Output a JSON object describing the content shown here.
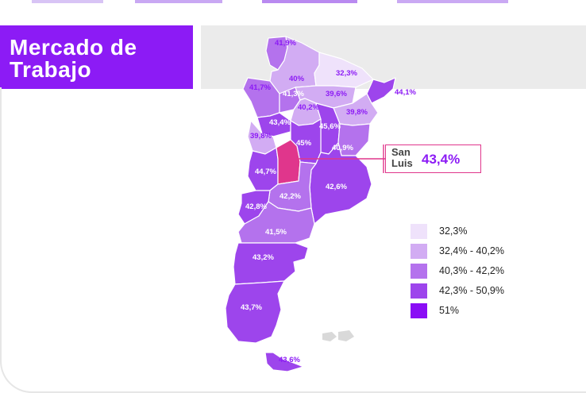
{
  "header": {
    "title_line1": "Mercado de",
    "title_line2": "Trabajo"
  },
  "colors": {
    "brand": "#8c1bf5",
    "highlight": "#e0368c",
    "class_1": "#efe2fb",
    "class_2": "#d2acf3",
    "class_3": "#b472ed",
    "class_4": "#9d45ec",
    "class_5": "#8a0df5"
  },
  "map": {
    "provinces": [
      {
        "label": "41,9%",
        "class": 3
      },
      {
        "label": "40%",
        "class": 2
      },
      {
        "label": "32,3%",
        "class": 1
      },
      {
        "label": "41,7%",
        "class": 3
      },
      {
        "label": "41,3%",
        "class": 3
      },
      {
        "label": "39,6%",
        "class": 2
      },
      {
        "label": "44,1%",
        "class": 4
      },
      {
        "label": "40,2%",
        "class": 2
      },
      {
        "label": "39,8%",
        "class": 2
      },
      {
        "label": "43,4%",
        "class": 4
      },
      {
        "label": "45,6%",
        "class": 4
      },
      {
        "label": "39,8%",
        "class": 2
      },
      {
        "label": "45%",
        "class": 4
      },
      {
        "label": "40,9%",
        "class": 3
      },
      {
        "label": "44,7%",
        "class": 4
      },
      {
        "label": "42,6%",
        "class": 4
      },
      {
        "label": "42,2%",
        "class": 3
      },
      {
        "label": "42,8%",
        "class": 4
      },
      {
        "label": "41,5%",
        "class": 3
      },
      {
        "label": "43,2%",
        "class": 4
      },
      {
        "label": "43,7%",
        "class": 4
      },
      {
        "label": "43,6%",
        "class": 4
      }
    ],
    "highlighted": {
      "name_line1": "San",
      "name_line2": "Luis",
      "value": "43,4%"
    }
  },
  "legend": {
    "items": [
      {
        "label": "32,3%",
        "class": 1
      },
      {
        "label": "32,4% - 40,2%",
        "class": 2
      },
      {
        "label": "40,3% - 42,2%",
        "class": 3
      },
      {
        "label": "42,3% - 50,9%",
        "class": 4
      },
      {
        "label": "51%",
        "class": 5
      }
    ]
  }
}
